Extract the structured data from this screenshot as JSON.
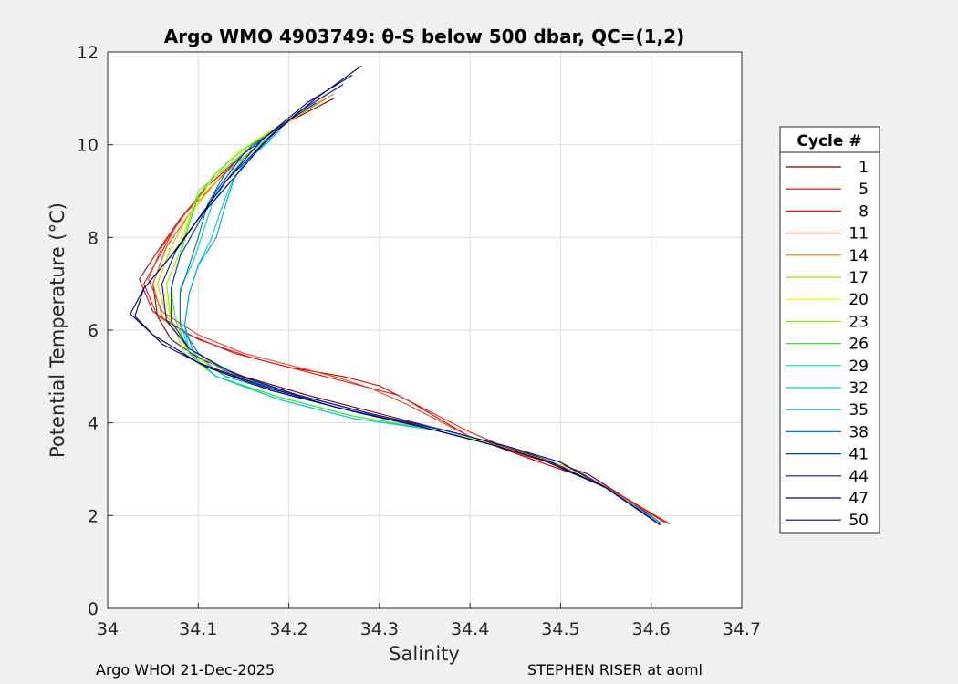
{
  "footer": {
    "left": "Argo WHOI 21-Dec-2025",
    "right": "STEPHEN RISER at aoml"
  },
  "legend": {
    "title": "Cycle #",
    "entries": [
      {
        "label": "1",
        "color": "#7f0000"
      },
      {
        "label": "5",
        "color": "#cc0000"
      },
      {
        "label": "8",
        "color": "#e31a1a"
      },
      {
        "label": "11",
        "color": "#e8441f"
      },
      {
        "label": "14",
        "color": "#e87800"
      },
      {
        "label": "17",
        "color": "#d9c400"
      },
      {
        "label": "20",
        "color": "#f2f200"
      },
      {
        "label": "23",
        "color": "#8fe600"
      },
      {
        "label": "26",
        "color": "#33e633"
      },
      {
        "label": "29",
        "color": "#00e0a0"
      },
      {
        "label": "32",
        "color": "#00c8e0"
      },
      {
        "label": "35",
        "color": "#00a0e6"
      },
      {
        "label": "38",
        "color": "#0070d0"
      },
      {
        "label": "41",
        "color": "#0040c0"
      },
      {
        "label": "44",
        "color": "#001aa6"
      },
      {
        "label": "47",
        "color": "#000080"
      },
      {
        "label": "50",
        "color": "#00005a"
      }
    ]
  },
  "chart_data": {
    "type": "line",
    "title": "Argo WMO 4903749: θ-S below 500 dbar,  QC=(1,2)",
    "xlabel": "Salinity",
    "ylabel": "Potential Temperature (°C)",
    "xlim": [
      34.0,
      34.7
    ],
    "ylim": [
      0,
      12
    ],
    "xticks": [
      "34",
      "34.1",
      "34.2",
      "34.3",
      "34.4",
      "34.5",
      "34.6",
      "34.7"
    ],
    "yticks": [
      "0",
      "2",
      "4",
      "6",
      "8",
      "10",
      "12"
    ],
    "grid": true,
    "legend_position": "outside-right",
    "series": [
      {
        "name": "1",
        "x": [
          34.25,
          34.2,
          34.16,
          34.12,
          34.09,
          34.065,
          34.05,
          34.055,
          34.07,
          34.1,
          34.15,
          34.22,
          34.3,
          34.4,
          34.47,
          34.53,
          34.57,
          34.61
        ],
        "y": [
          11.0,
          10.5,
          10.0,
          9.2,
          8.5,
          7.8,
          7.0,
          6.3,
          5.8,
          5.4,
          5.0,
          4.6,
          4.2,
          3.7,
          3.3,
          2.9,
          2.4,
          1.85
        ]
      },
      {
        "name": "5",
        "x": [
          34.23,
          34.19,
          34.15,
          34.11,
          34.08,
          34.055,
          34.035,
          34.05,
          34.09,
          34.14,
          34.2,
          34.26,
          34.3,
          34.33,
          34.4,
          34.47,
          34.53,
          34.57,
          34.62
        ],
        "y": [
          10.9,
          10.4,
          9.8,
          9.1,
          8.4,
          7.7,
          7.1,
          6.4,
          5.9,
          5.5,
          5.2,
          5.0,
          4.8,
          4.5,
          3.7,
          3.2,
          2.8,
          2.4,
          1.82
        ]
      },
      {
        "name": "8",
        "x": [
          34.24,
          34.19,
          34.15,
          34.11,
          34.08,
          34.06,
          34.04,
          34.055,
          34.1,
          34.16,
          34.22,
          34.27,
          34.32,
          34.4,
          34.46,
          34.52,
          34.56,
          34.615
        ],
        "y": [
          11.0,
          10.4,
          9.8,
          9.1,
          8.4,
          7.7,
          7.0,
          6.3,
          5.8,
          5.4,
          5.1,
          4.85,
          4.6,
          3.8,
          3.3,
          2.95,
          2.5,
          1.85
        ]
      },
      {
        "name": "11",
        "x": [
          34.24,
          34.2,
          34.16,
          34.12,
          34.085,
          34.06,
          34.045,
          34.06,
          34.1,
          34.15,
          34.2,
          34.25,
          34.29,
          34.33,
          34.4,
          34.46,
          34.52,
          34.56,
          34.615
        ],
        "y": [
          11.0,
          10.5,
          9.9,
          9.2,
          8.5,
          7.8,
          7.1,
          6.4,
          5.9,
          5.5,
          5.25,
          5.0,
          4.75,
          4.4,
          3.7,
          3.3,
          2.95,
          2.5,
          1.85
        ]
      },
      {
        "name": "14",
        "x": [
          34.25,
          34.2,
          34.16,
          34.12,
          34.09,
          34.065,
          34.05,
          34.06,
          34.09,
          34.13,
          34.2,
          34.28,
          34.37,
          34.44,
          34.5,
          34.55,
          34.61
        ],
        "y": [
          11.1,
          10.5,
          9.9,
          9.2,
          8.5,
          7.8,
          7.0,
          6.3,
          5.6,
          5.1,
          4.6,
          4.2,
          3.8,
          3.45,
          3.1,
          2.6,
          1.85
        ]
      },
      {
        "name": "17",
        "x": [
          34.24,
          34.2,
          34.16,
          34.12,
          34.09,
          34.07,
          34.055,
          34.065,
          34.09,
          34.13,
          34.2,
          34.28,
          34.37,
          34.44,
          34.5,
          34.55,
          34.61
        ],
        "y": [
          11.0,
          10.5,
          9.9,
          9.2,
          8.5,
          7.8,
          7.0,
          6.3,
          5.6,
          5.1,
          4.65,
          4.25,
          3.85,
          3.45,
          3.1,
          2.6,
          1.85
        ]
      },
      {
        "name": "20",
        "x": [
          34.22,
          34.18,
          34.14,
          34.11,
          34.09,
          34.075,
          34.06,
          34.07,
          34.09,
          34.13,
          34.2,
          34.28,
          34.37,
          34.44,
          34.5,
          34.55,
          34.61
        ],
        "y": [
          10.8,
          10.3,
          9.8,
          9.1,
          8.4,
          7.7,
          7.0,
          6.2,
          5.5,
          5.0,
          4.6,
          4.2,
          3.85,
          3.45,
          3.1,
          2.6,
          1.85
        ]
      },
      {
        "name": "23",
        "x": [
          34.2,
          34.16,
          34.13,
          34.1,
          34.09,
          34.08,
          34.065,
          34.07,
          34.085,
          34.12,
          34.19,
          34.27,
          34.36,
          34.43,
          34.49,
          34.55,
          34.61
        ],
        "y": [
          10.5,
          10.0,
          9.5,
          9.0,
          8.4,
          7.7,
          7.0,
          6.2,
          5.5,
          5.0,
          4.55,
          4.15,
          3.85,
          3.5,
          3.15,
          2.6,
          1.85
        ]
      },
      {
        "name": "26",
        "x": [
          34.19,
          34.15,
          34.12,
          34.1,
          34.09,
          34.08,
          34.07,
          34.075,
          34.09,
          34.12,
          34.19,
          34.27,
          34.36,
          34.43,
          34.49,
          34.55,
          34.61
        ],
        "y": [
          10.4,
          9.9,
          9.4,
          8.9,
          8.3,
          7.6,
          6.9,
          6.2,
          5.5,
          5.0,
          4.55,
          4.15,
          3.85,
          3.5,
          3.15,
          2.6,
          1.85
        ]
      },
      {
        "name": "29",
        "x": [
          34.18,
          34.15,
          34.13,
          34.115,
          34.105,
          34.095,
          34.08,
          34.08,
          34.09,
          34.12,
          34.19,
          34.27,
          34.36,
          34.43,
          34.49,
          34.55,
          34.61
        ],
        "y": [
          10.2,
          9.7,
          9.2,
          8.7,
          8.1,
          7.5,
          6.9,
          6.2,
          5.5,
          5.0,
          4.5,
          4.1,
          3.85,
          3.5,
          3.15,
          2.6,
          1.85
        ]
      },
      {
        "name": "32",
        "x": [
          34.18,
          34.15,
          34.135,
          34.125,
          34.115,
          34.1,
          34.09,
          34.085,
          34.09,
          34.12,
          34.19,
          34.27,
          34.36,
          34.43,
          34.49,
          34.55,
          34.61
        ],
        "y": [
          10.1,
          9.6,
          9.1,
          8.6,
          8.0,
          7.4,
          6.8,
          6.1,
          5.5,
          5.0,
          4.5,
          4.1,
          3.85,
          3.5,
          3.15,
          2.6,
          1.85
        ]
      },
      {
        "name": "35",
        "x": [
          34.19,
          34.16,
          34.14,
          34.13,
          34.12,
          34.1,
          34.09,
          34.085,
          34.095,
          34.13,
          34.2,
          34.28,
          34.37,
          34.44,
          34.5,
          34.55,
          34.61
        ],
        "y": [
          10.3,
          9.8,
          9.3,
          8.7,
          8.0,
          7.4,
          6.8,
          6.1,
          5.5,
          5.0,
          4.6,
          4.2,
          3.85,
          3.5,
          3.15,
          2.6,
          1.85
        ]
      },
      {
        "name": "38",
        "x": [
          34.2,
          34.16,
          34.13,
          34.11,
          34.1,
          34.09,
          34.08,
          34.08,
          34.1,
          34.14,
          34.21,
          34.29,
          34.37,
          34.44,
          34.5,
          34.55,
          34.61
        ],
        "y": [
          10.5,
          10.0,
          9.4,
          8.7,
          8.0,
          7.4,
          6.8,
          6.1,
          5.5,
          5.0,
          4.6,
          4.2,
          3.85,
          3.5,
          3.15,
          2.6,
          1.8
        ]
      },
      {
        "name": "41",
        "x": [
          34.23,
          34.19,
          34.15,
          34.12,
          34.1,
          34.08,
          34.07,
          34.07,
          34.09,
          34.14,
          34.21,
          34.29,
          34.37,
          34.44,
          34.5,
          34.55,
          34.61
        ],
        "y": [
          10.9,
          10.4,
          9.8,
          9.0,
          8.3,
          7.6,
          6.9,
          6.2,
          5.6,
          5.05,
          4.6,
          4.2,
          3.85,
          3.5,
          3.15,
          2.6,
          1.8
        ]
      },
      {
        "name": "44",
        "x": [
          34.26,
          34.21,
          34.17,
          34.13,
          34.1,
          34.075,
          34.06,
          34.065,
          34.09,
          34.14,
          34.21,
          34.29,
          34.37,
          34.44,
          34.5,
          34.55,
          34.61
        ],
        "y": [
          11.3,
          10.7,
          10.0,
          9.2,
          8.4,
          7.7,
          7.0,
          6.2,
          5.6,
          5.05,
          4.6,
          4.2,
          3.85,
          3.5,
          3.15,
          2.6,
          1.8
        ]
      },
      {
        "name": "47",
        "x": [
          34.27,
          34.22,
          34.17,
          34.13,
          34.1,
          34.07,
          34.04,
          34.03,
          34.06,
          34.11,
          34.18,
          34.26,
          34.35,
          34.43,
          34.49,
          34.55,
          34.61
        ],
        "y": [
          11.5,
          10.9,
          10.1,
          9.2,
          8.4,
          7.6,
          6.9,
          6.3,
          5.7,
          5.2,
          4.7,
          4.3,
          3.9,
          3.5,
          3.15,
          2.6,
          1.8
        ]
      },
      {
        "name": "50",
        "x": [
          34.28,
          34.23,
          34.18,
          34.14,
          34.1,
          34.07,
          34.04,
          34.025,
          34.05,
          34.1,
          34.17,
          34.25,
          34.34,
          34.42,
          34.48,
          34.55,
          34.61
        ],
        "y": [
          11.7,
          11.0,
          10.2,
          9.3,
          8.4,
          7.6,
          6.9,
          6.35,
          5.9,
          5.3,
          4.8,
          4.35,
          3.95,
          3.55,
          3.2,
          2.6,
          1.8
        ]
      }
    ]
  }
}
